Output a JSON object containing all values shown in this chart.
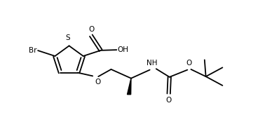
{
  "bg_color": "#ffffff",
  "line_color": "#000000",
  "lw": 1.3,
  "fs": 7.5,
  "figsize": [
    3.98,
    1.84
  ],
  "dpi": 100,
  "xlim": [
    0,
    10
  ],
  "ylim": [
    0,
    5
  ]
}
